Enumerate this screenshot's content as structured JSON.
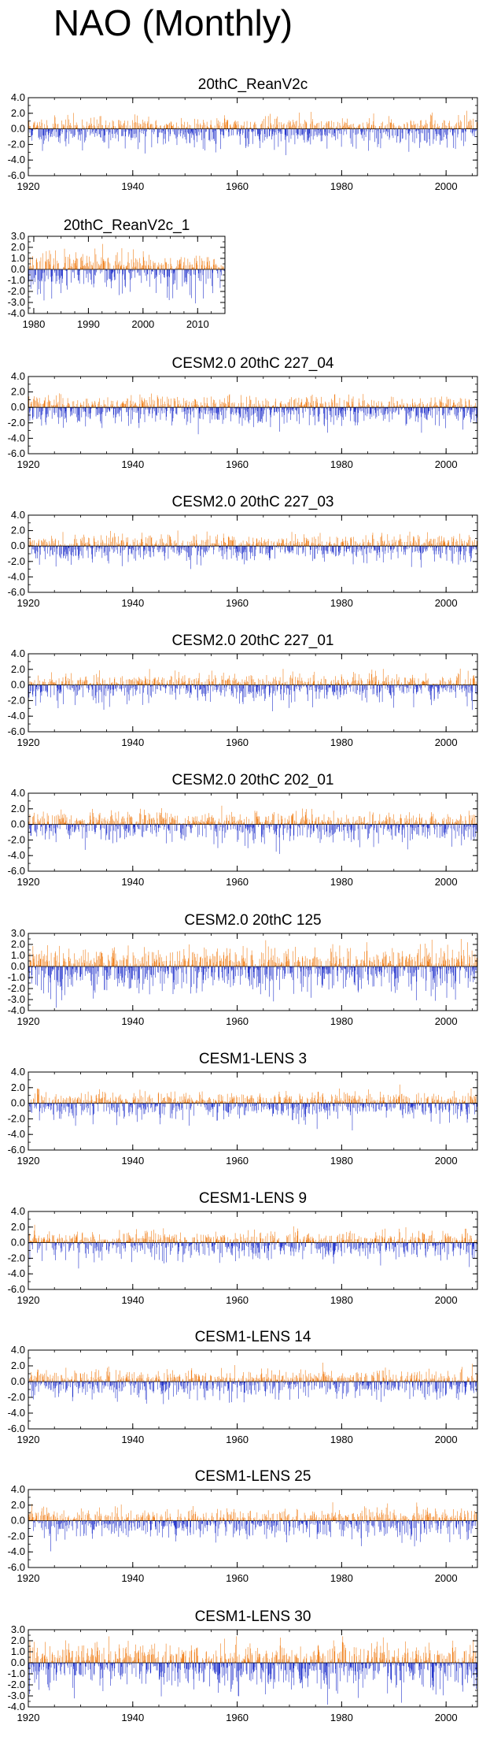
{
  "page_title": "NAO (Monthly)",
  "colors": {
    "positive": "#f07f1a",
    "negative": "#2233cc",
    "axis": "#000000",
    "zero_line": "#000000"
  },
  "chart_data": [
    {
      "type": "bar",
      "title": "20thC_ReanV2c",
      "x_range": [
        1920,
        2006
      ],
      "xticks": [
        1920,
        1940,
        1960,
        1980,
        2000
      ],
      "xtick_labels": [
        "1920",
        "1940",
        "1960",
        "1980",
        "2000"
      ],
      "ylim": [
        -6.0,
        4.0
      ],
      "yticks": [
        4.0,
        2.0,
        0.0,
        -2.0,
        -4.0,
        -6.0
      ],
      "ytick_labels": [
        "4.0",
        "2.0",
        "0.0",
        "-2.0",
        "-4.0",
        "-6.0"
      ],
      "series": [
        {
          "name": "NAO monthly",
          "seed": 11,
          "x_start": 1920,
          "x_end": 2006,
          "pos_scale": 1.0,
          "neg_scale": 1.4,
          "min_val": -4.3,
          "max_val": 3.0
        }
      ]
    },
    {
      "type": "bar",
      "title": "20thC_ReanV2c_1",
      "x_range": [
        1979,
        2015
      ],
      "xticks": [
        1980,
        1990,
        2000,
        2010
      ],
      "xtick_labels": [
        "1980",
        "1990",
        "2000",
        "2010"
      ],
      "ylim": [
        -4.0,
        3.0
      ],
      "yticks": [
        3.0,
        2.0,
        1.0,
        0.0,
        -1.0,
        -2.0,
        -3.0,
        -4.0
      ],
      "ytick_labels": [
        "3.0",
        "2.0",
        "1.0",
        "0.0",
        "-1.0",
        "-2.0",
        "-3.0",
        "-4.0"
      ],
      "series": [
        {
          "name": "NAO monthly",
          "seed": 23,
          "x_start": 1979,
          "x_end": 2015,
          "pos_scale": 1.0,
          "neg_scale": 1.3,
          "min_val": -3.8,
          "max_val": 2.4
        }
      ]
    },
    {
      "type": "bar",
      "title": "CESM2.0 20thC 227_04",
      "x_range": [
        1920,
        2006
      ],
      "xticks": [
        1920,
        1940,
        1960,
        1980,
        2000
      ],
      "xtick_labels": [
        "1920",
        "1940",
        "1960",
        "1980",
        "2000"
      ],
      "ylim": [
        -6.0,
        4.0
      ],
      "yticks": [
        4.0,
        2.0,
        0.0,
        -2.0,
        -4.0,
        -6.0
      ],
      "ytick_labels": [
        "4.0",
        "2.0",
        "0.0",
        "-2.0",
        "-4.0",
        "-6.0"
      ],
      "series": [
        {
          "name": "NAO monthly",
          "seed": 37,
          "x_start": 1920,
          "x_end": 2006,
          "pos_scale": 1.0,
          "neg_scale": 1.4,
          "min_val": -4.2,
          "max_val": 2.5
        }
      ]
    },
    {
      "type": "bar",
      "title": "CESM2.0 20thC 227_03",
      "x_range": [
        1920,
        2006
      ],
      "xticks": [
        1920,
        1940,
        1960,
        1980,
        2000
      ],
      "xtick_labels": [
        "1920",
        "1940",
        "1960",
        "1980",
        "2000"
      ],
      "ylim": [
        -6.0,
        4.0
      ],
      "yticks": [
        4.0,
        2.0,
        0.0,
        -2.0,
        -4.0,
        -6.0
      ],
      "ytick_labels": [
        "4.0",
        "2.0",
        "0.0",
        "-2.0",
        "-4.0",
        "-6.0"
      ],
      "series": [
        {
          "name": "NAO monthly",
          "seed": 41,
          "x_start": 1920,
          "x_end": 2006,
          "pos_scale": 1.0,
          "neg_scale": 1.3,
          "min_val": -3.7,
          "max_val": 2.4
        }
      ]
    },
    {
      "type": "bar",
      "title": "CESM2.0 20thC 227_01",
      "x_range": [
        1920,
        2006
      ],
      "xticks": [
        1920,
        1940,
        1960,
        1980,
        2000
      ],
      "xtick_labels": [
        "1920",
        "1940",
        "1960",
        "1980",
        "2000"
      ],
      "ylim": [
        -6.0,
        4.0
      ],
      "yticks": [
        4.0,
        2.0,
        0.0,
        -2.0,
        -4.0,
        -6.0
      ],
      "ytick_labels": [
        "4.0",
        "2.0",
        "0.0",
        "-2.0",
        "-4.0",
        "-6.0"
      ],
      "series": [
        {
          "name": "NAO monthly",
          "seed": 53,
          "x_start": 1920,
          "x_end": 2006,
          "pos_scale": 1.0,
          "neg_scale": 1.4,
          "min_val": -4.2,
          "max_val": 2.8
        }
      ]
    },
    {
      "type": "bar",
      "title": "CESM2.0 20thC 202_01",
      "x_range": [
        1920,
        2006
      ],
      "xticks": [
        1920,
        1940,
        1960,
        1980,
        2000
      ],
      "xtick_labels": [
        "1920",
        "1940",
        "1960",
        "1980",
        "2000"
      ],
      "ylim": [
        -6.0,
        4.0
      ],
      "yticks": [
        4.0,
        2.0,
        0.0,
        -2.0,
        -4.0,
        -6.0
      ],
      "ytick_labels": [
        "4.0",
        "2.0",
        "0.0",
        "-2.0",
        "-4.0",
        "-6.0"
      ],
      "series": [
        {
          "name": "NAO monthly",
          "seed": 67,
          "x_start": 1920,
          "x_end": 2006,
          "pos_scale": 1.0,
          "neg_scale": 1.4,
          "min_val": -4.0,
          "max_val": 2.4
        }
      ]
    },
    {
      "type": "bar",
      "title": "CESM2.0 20thC 125",
      "x_range": [
        1920,
        2006
      ],
      "xticks": [
        1920,
        1940,
        1960,
        1980,
        2000
      ],
      "xtick_labels": [
        "1920",
        "1940",
        "1960",
        "1980",
        "2000"
      ],
      "ylim": [
        -4.0,
        3.0
      ],
      "yticks": [
        3.0,
        2.0,
        1.0,
        0.0,
        -1.0,
        -2.0,
        -3.0,
        -4.0
      ],
      "ytick_labels": [
        "3.0",
        "2.0",
        "1.0",
        "0.0",
        "-1.0",
        "-2.0",
        "-3.0",
        "-4.0"
      ],
      "series": [
        {
          "name": "NAO monthly",
          "seed": 79,
          "x_start": 1920,
          "x_end": 2006,
          "pos_scale": 1.2,
          "neg_scale": 1.5,
          "min_val": -3.8,
          "max_val": 2.5
        }
      ]
    },
    {
      "type": "bar",
      "title": "CESM1-LENS 3",
      "x_range": [
        1920,
        2006
      ],
      "xticks": [
        1920,
        1940,
        1960,
        1980,
        2000
      ],
      "xtick_labels": [
        "1920",
        "1940",
        "1960",
        "1980",
        "2000"
      ],
      "ylim": [
        -6.0,
        4.0
      ],
      "yticks": [
        4.0,
        2.0,
        0.0,
        -2.0,
        -4.0,
        -6.0
      ],
      "ytick_labels": [
        "4.0",
        "2.0",
        "0.0",
        "-2.0",
        "-4.0",
        "-6.0"
      ],
      "series": [
        {
          "name": "NAO monthly",
          "seed": 83,
          "x_start": 1920,
          "x_end": 2006,
          "pos_scale": 1.0,
          "neg_scale": 1.3,
          "min_val": -3.5,
          "max_val": 2.4
        }
      ]
    },
    {
      "type": "bar",
      "title": "CESM1-LENS 9",
      "x_range": [
        1920,
        2006
      ],
      "xticks": [
        1920,
        1940,
        1960,
        1980,
        2000
      ],
      "xtick_labels": [
        "1920",
        "1940",
        "1960",
        "1980",
        "2000"
      ],
      "ylim": [
        -6.0,
        4.0
      ],
      "yticks": [
        4.0,
        2.0,
        0.0,
        -2.0,
        -4.0,
        -6.0
      ],
      "ytick_labels": [
        "4.0",
        "2.0",
        "0.0",
        "-2.0",
        "-4.0",
        "-6.0"
      ],
      "series": [
        {
          "name": "NAO monthly",
          "seed": 97,
          "x_start": 1920,
          "x_end": 2006,
          "pos_scale": 1.0,
          "neg_scale": 1.4,
          "min_val": -4.0,
          "max_val": 2.6
        }
      ]
    },
    {
      "type": "bar",
      "title": "CESM1-LENS 14",
      "x_range": [
        1920,
        2006
      ],
      "xticks": [
        1920,
        1940,
        1960,
        1980,
        2000
      ],
      "xtick_labels": [
        "1920",
        "1940",
        "1960",
        "1980",
        "2000"
      ],
      "ylim": [
        -6.0,
        4.0
      ],
      "yticks": [
        4.0,
        2.0,
        0.0,
        -2.0,
        -4.0,
        -6.0
      ],
      "ytick_labels": [
        "4.0",
        "2.0",
        "0.0",
        "-2.0",
        "-4.0",
        "-6.0"
      ],
      "series": [
        {
          "name": "NAO monthly",
          "seed": 101,
          "x_start": 1920,
          "x_end": 2006,
          "pos_scale": 1.0,
          "neg_scale": 1.3,
          "min_val": -3.6,
          "max_val": 2.5
        }
      ]
    },
    {
      "type": "bar",
      "title": "CESM1-LENS 25",
      "x_range": [
        1920,
        2006
      ],
      "xticks": [
        1920,
        1940,
        1960,
        1980,
        2000
      ],
      "xtick_labels": [
        "1920",
        "1940",
        "1960",
        "1980",
        "2000"
      ],
      "ylim": [
        -6.0,
        4.0
      ],
      "yticks": [
        4.0,
        2.0,
        0.0,
        -2.0,
        -4.0,
        -6.0
      ],
      "ytick_labels": [
        "4.0",
        "2.0",
        "0.0",
        "-2.0",
        "-4.0",
        "-6.0"
      ],
      "series": [
        {
          "name": "NAO monthly",
          "seed": 113,
          "x_start": 1920,
          "x_end": 2006,
          "pos_scale": 1.0,
          "neg_scale": 1.4,
          "min_val": -4.1,
          "max_val": 2.7
        }
      ]
    },
    {
      "type": "bar",
      "title": "CESM1-LENS 30",
      "x_range": [
        1920,
        2006
      ],
      "xticks": [
        1920,
        1940,
        1960,
        1980,
        2000
      ],
      "xtick_labels": [
        "1920",
        "1940",
        "1960",
        "1980",
        "2000"
      ],
      "ylim": [
        -4.0,
        3.0
      ],
      "yticks": [
        3.0,
        2.0,
        1.0,
        0.0,
        -1.0,
        -2.0,
        -3.0,
        -4.0
      ],
      "ytick_labels": [
        "3.0",
        "2.0",
        "1.0",
        "0.0",
        "-1.0",
        "-2.0",
        "-3.0",
        "-4.0"
      ],
      "series": [
        {
          "name": "NAO monthly",
          "seed": 127,
          "x_start": 1920,
          "x_end": 2006,
          "pos_scale": 1.2,
          "neg_scale": 1.5,
          "min_val": -3.8,
          "max_val": 2.4
        }
      ]
    }
  ]
}
